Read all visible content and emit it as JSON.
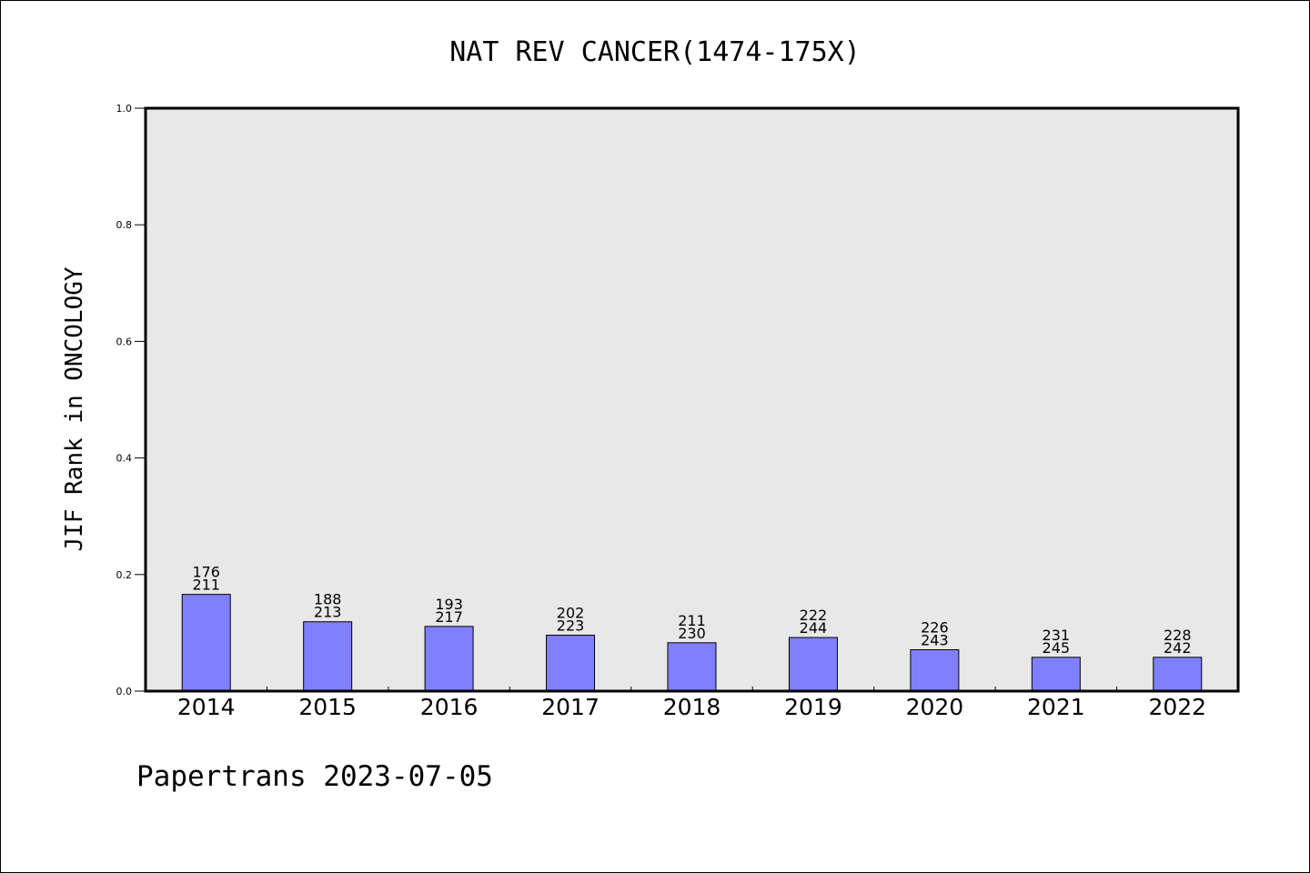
{
  "chart_data": {
    "type": "bar",
    "title": "NAT REV CANCER(1474-175X)",
    "ylabel": "JIF Rank in ONCOLOGY",
    "xlabel": "",
    "ylim": [
      0.0,
      1.0
    ],
    "yticks": [
      "0.0",
      "0.2",
      "0.4",
      "0.6",
      "0.8",
      "1.0"
    ],
    "categories": [
      "2014",
      "2015",
      "2016",
      "2017",
      "2018",
      "2019",
      "2020",
      "2021",
      "2022"
    ],
    "values": [
      0.166,
      0.119,
      0.111,
      0.096,
      0.083,
      0.092,
      0.071,
      0.058,
      0.058
    ],
    "rank": [
      "176",
      "188",
      "193",
      "202",
      "211",
      "222",
      "226",
      "231",
      "228"
    ],
    "total": [
      "211",
      "213",
      "217",
      "223",
      "230",
      "244",
      "243",
      "245",
      "242"
    ],
    "grid": false,
    "bar_color": "#8080ff",
    "plot_background": "#e8e8e8"
  },
  "footer": "Papertrans 2023-07-05"
}
